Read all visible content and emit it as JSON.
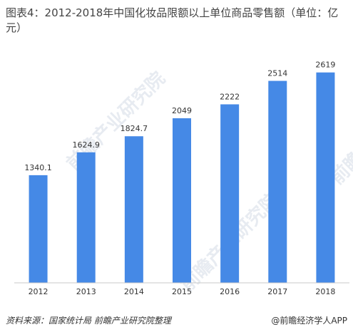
{
  "title": "图表4：2012-2018年中国化妆品限额以上单位商品零售额（单位：亿元）",
  "footer": {
    "source": "资料来源：国家统计局 前瞻产业研究院整理",
    "credit": "@前瞻经济学人APP"
  },
  "watermark": "前瞻产业研究院",
  "colors": {
    "bar": "#4589e6",
    "axis": "#c8c8c8"
  },
  "chart_data": {
    "type": "bar",
    "title": "图表4：2012-2018年中国化妆品限额以上单位商品零售额（单位：亿元）",
    "xlabel": "",
    "ylabel": "",
    "categories": [
      "2012",
      "2013",
      "2014",
      "2015",
      "2016",
      "2017",
      "2018"
    ],
    "values": [
      1340.1,
      1624.9,
      1824.7,
      2049,
      2222,
      2514,
      2619
    ],
    "value_labels": [
      "1340.1",
      "1624.9",
      "1824.7",
      "2049",
      "2222",
      "2514",
      "2619"
    ],
    "ylim": [
      0,
      2900
    ],
    "grid": false,
    "legend": "none"
  }
}
